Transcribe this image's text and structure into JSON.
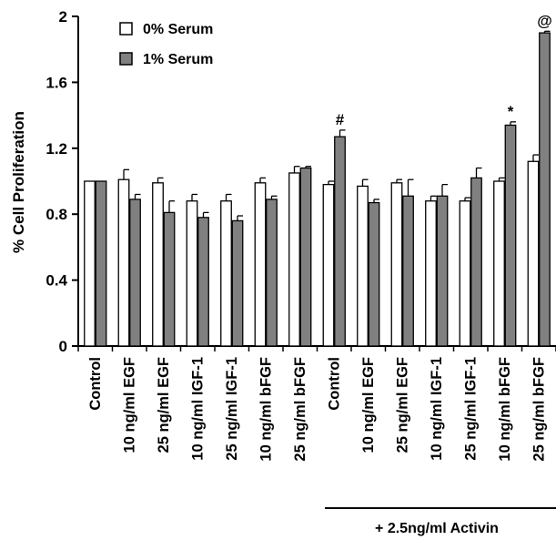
{
  "chart_data": {
    "type": "bar",
    "title": "",
    "xlabel": "",
    "ylabel": "% Cell Proliferation",
    "ylim": [
      0,
      2
    ],
    "yticks": [
      "0",
      "0.4",
      "0.8",
      "1.2",
      "1.6",
      "2"
    ],
    "grid": false,
    "legend_position": "top-left",
    "categories": [
      "Control",
      "10 ng/ml EGF",
      "25 ng/ml EGF",
      "10 ng/ml IGF-1",
      "25 ng/ml IGF-1",
      "10 ng/ml bFGF",
      "25 ng/ml bFGF",
      "Control",
      "10 ng/ml EGF",
      "25 ng/ml EGF",
      "10 ng/ml IGF-1",
      "25 ng/ml IGF-1",
      "10 ng/ml bFGF",
      "25 ng/ml bFGF"
    ],
    "series": [
      {
        "name": "0% Serum",
        "color": "#ffffff",
        "values": [
          1.0,
          1.01,
          0.99,
          0.88,
          0.88,
          0.99,
          1.05,
          0.98,
          0.97,
          0.99,
          0.88,
          0.88,
          1.0,
          1.12
        ],
        "errors": [
          0.0,
          0.06,
          0.03,
          0.04,
          0.04,
          0.03,
          0.04,
          0.02,
          0.04,
          0.02,
          0.03,
          0.02,
          0.02,
          0.04
        ]
      },
      {
        "name": "1% Serum",
        "color": "#808080",
        "values": [
          1.0,
          0.89,
          0.81,
          0.78,
          0.76,
          0.89,
          1.08,
          1.27,
          0.87,
          0.91,
          0.91,
          1.02,
          1.34,
          1.9
        ],
        "errors": [
          0.0,
          0.03,
          0.07,
          0.03,
          0.03,
          0.02,
          0.01,
          0.04,
          0.02,
          0.1,
          0.07,
          0.06,
          0.02,
          0.01
        ]
      }
    ],
    "annotations": [
      {
        "category_index": 7,
        "series": 1,
        "text": "#"
      },
      {
        "category_index": 12,
        "series": 1,
        "text": "*"
      },
      {
        "category_index": 13,
        "series": 1,
        "text": "@"
      }
    ],
    "group_bracket": {
      "label": "+ 2.5ng/ml Activin",
      "from_index": 7,
      "to_index": 13
    }
  }
}
